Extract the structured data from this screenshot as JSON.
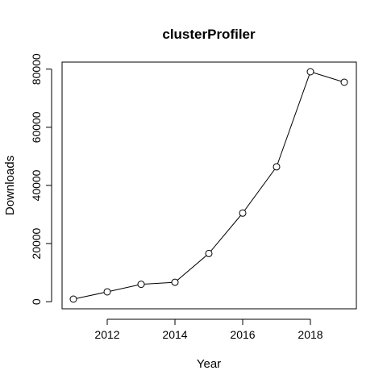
{
  "chart_data": {
    "type": "line",
    "title": "clusterProfiler",
    "xlabel": "Year",
    "ylabel": "Downloads",
    "x": [
      2011,
      2012,
      2013,
      2014,
      2015,
      2016,
      2017,
      2018,
      2019
    ],
    "series": [
      {
        "values": [
          900,
          3400,
          6000,
          6700,
          16600,
          30500,
          46400,
          79100,
          75500
        ]
      }
    ],
    "xlim": [
      2011,
      2019
    ],
    "ylim": [
      900,
      79100
    ],
    "x_ticks": [
      2012,
      2014,
      2016,
      2018
    ],
    "y_ticks": [
      0,
      20000,
      40000,
      60000,
      80000
    ],
    "grid": false,
    "marker": "open-circle",
    "line_color": "#000000"
  }
}
